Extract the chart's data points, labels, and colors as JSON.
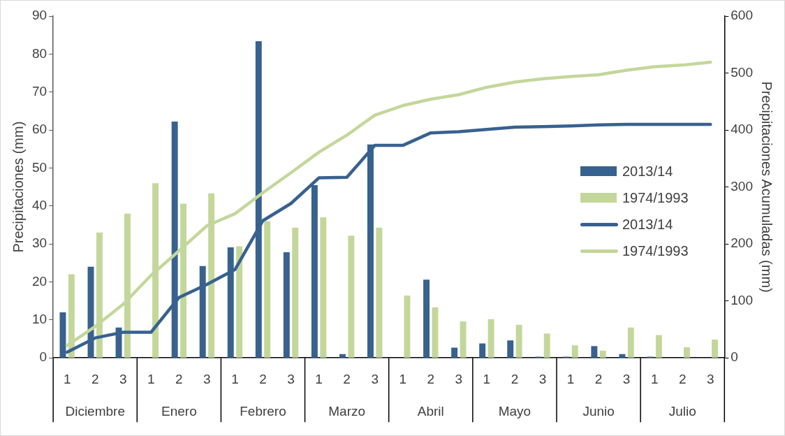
{
  "chart_data": {
    "type": "bar",
    "ylabel": "Precipitaciones (mm)",
    "y2label": "Precipitaciones Acumuladas (mm)",
    "categories": [
      "1",
      "2",
      "3",
      "1",
      "2",
      "3",
      "1",
      "2",
      "3",
      "1",
      "2",
      "3",
      "1",
      "2",
      "3",
      "1",
      "2",
      "3",
      "1",
      "2",
      "3",
      "1",
      "2",
      "3"
    ],
    "annotations": [
      "Diciembre",
      "Enero",
      "Febrero",
      "Marzo",
      "Abril",
      "Mayo",
      "Junio",
      "Julio"
    ],
    "series": [
      {
        "name": "2013/14",
        "type": "bar",
        "color": "#37618f",
        "values": [
          12,
          24,
          8,
          0,
          62.2,
          24.2,
          29.1,
          83.4,
          27.8,
          45.5,
          1,
          56.2,
          0,
          20.6,
          2.7,
          3.8,
          4.6,
          0.3,
          0.3,
          3.1,
          1,
          0.3,
          0,
          0
        ]
      },
      {
        "name": "1974/1993",
        "type": "bar",
        "color": "#c4d79b",
        "values": [
          22,
          33,
          38,
          46,
          40.6,
          43.3,
          29.4,
          36,
          34.3,
          37,
          32.2,
          34.3,
          16.4,
          13.3,
          9.6,
          10.2,
          8.7,
          6.4,
          3.3,
          1.9,
          8,
          6,
          2.8,
          4.8
        ]
      },
      {
        "name": "2013/14",
        "type": "line",
        "axis": "y2",
        "color": "#37618f",
        "values": [
          10,
          35,
          45,
          45,
          106,
          129,
          155,
          241,
          271,
          316,
          317,
          373,
          373,
          395,
          397,
          401,
          405,
          406,
          407,
          409,
          410,
          410,
          410,
          410
        ]
      },
      {
        "name": "1974/1993",
        "type": "line",
        "axis": "y2",
        "color": "#c4d79b",
        "values": [
          22,
          55,
          94,
          145,
          188,
          232,
          253,
          290,
          325,
          361,
          391,
          426,
          443,
          454,
          462,
          475,
          484,
          490,
          494,
          497,
          505,
          511,
          514,
          519
        ]
      }
    ],
    "ylim": [
      0,
      90
    ],
    "yticks": [
      0,
      10,
      20,
      30,
      40,
      50,
      60,
      70,
      80,
      90
    ],
    "y2lim": [
      0,
      600
    ],
    "y2ticks": [
      0,
      100,
      200,
      300,
      400,
      500,
      600
    ],
    "legend": "right",
    "grid": false,
    "marker": "none"
  }
}
